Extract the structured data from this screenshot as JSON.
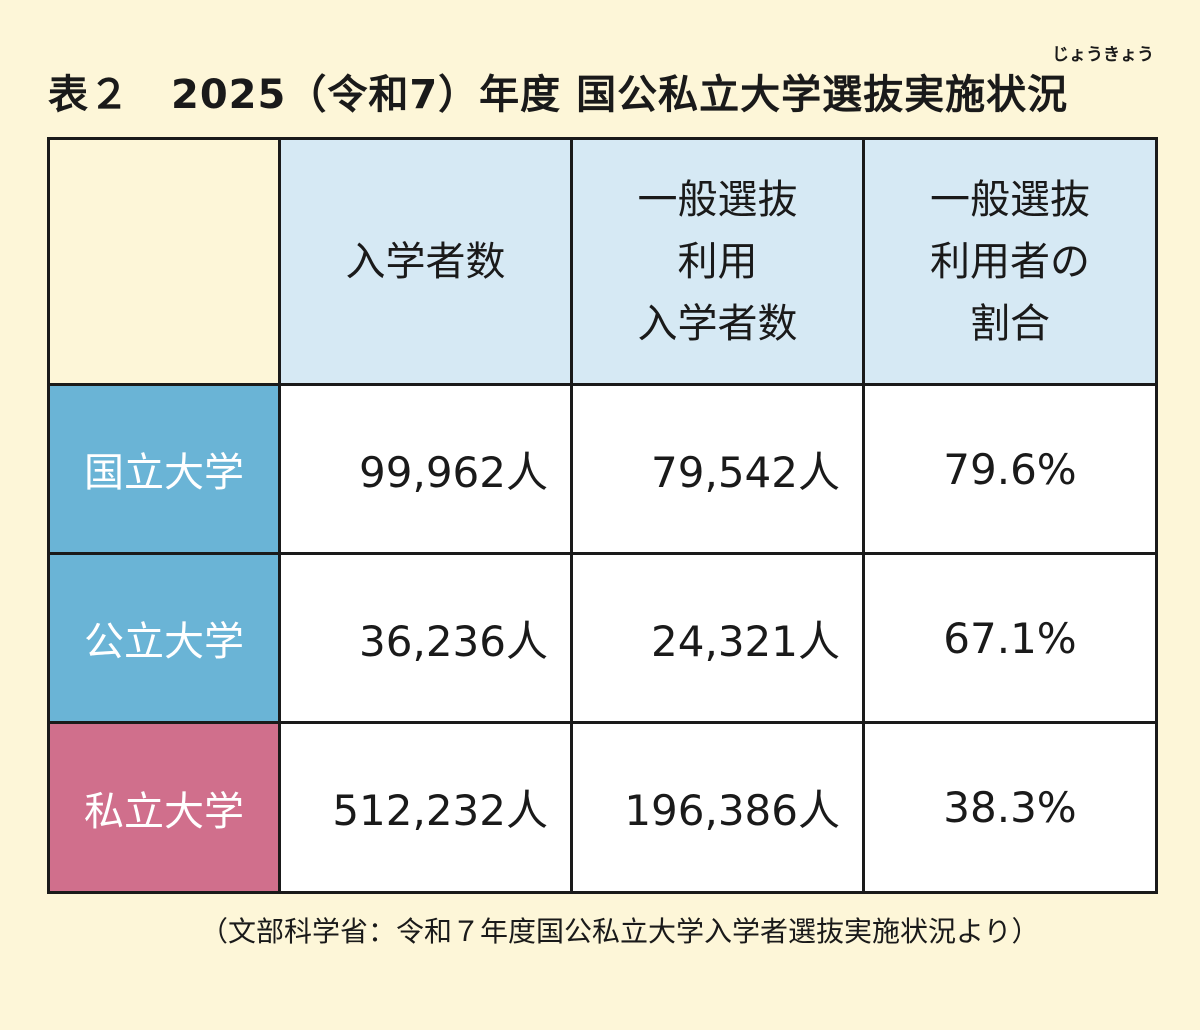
{
  "title": {
    "text": "表２　2025（令和7）年度 国公私立大学選抜実施状況",
    "ruby": "じょうきょう"
  },
  "table": {
    "headers": [
      "",
      "入学者数",
      "一般選抜\n利用\n入学者数",
      "一般選抜\n利用者の\n割合"
    ],
    "rows": [
      {
        "label": "国立大学",
        "enrolled": "99,962人",
        "general": "79,542人",
        "ratio": "79.6%"
      },
      {
        "label": "公立大学",
        "enrolled": "36,236人",
        "general": "24,321人",
        "ratio": "67.1%"
      },
      {
        "label": "私立大学",
        "enrolled": "512,232人",
        "general": "196,386人",
        "ratio": "38.3%"
      }
    ]
  },
  "colors": {
    "background": "#fdf6d8",
    "header": "#d6e9f4",
    "national_public": "#6ab4d6",
    "private": "#d06f8c"
  },
  "source": "（文部科学省：令和７年度国公私立大学入学者選抜実施状況より）"
}
